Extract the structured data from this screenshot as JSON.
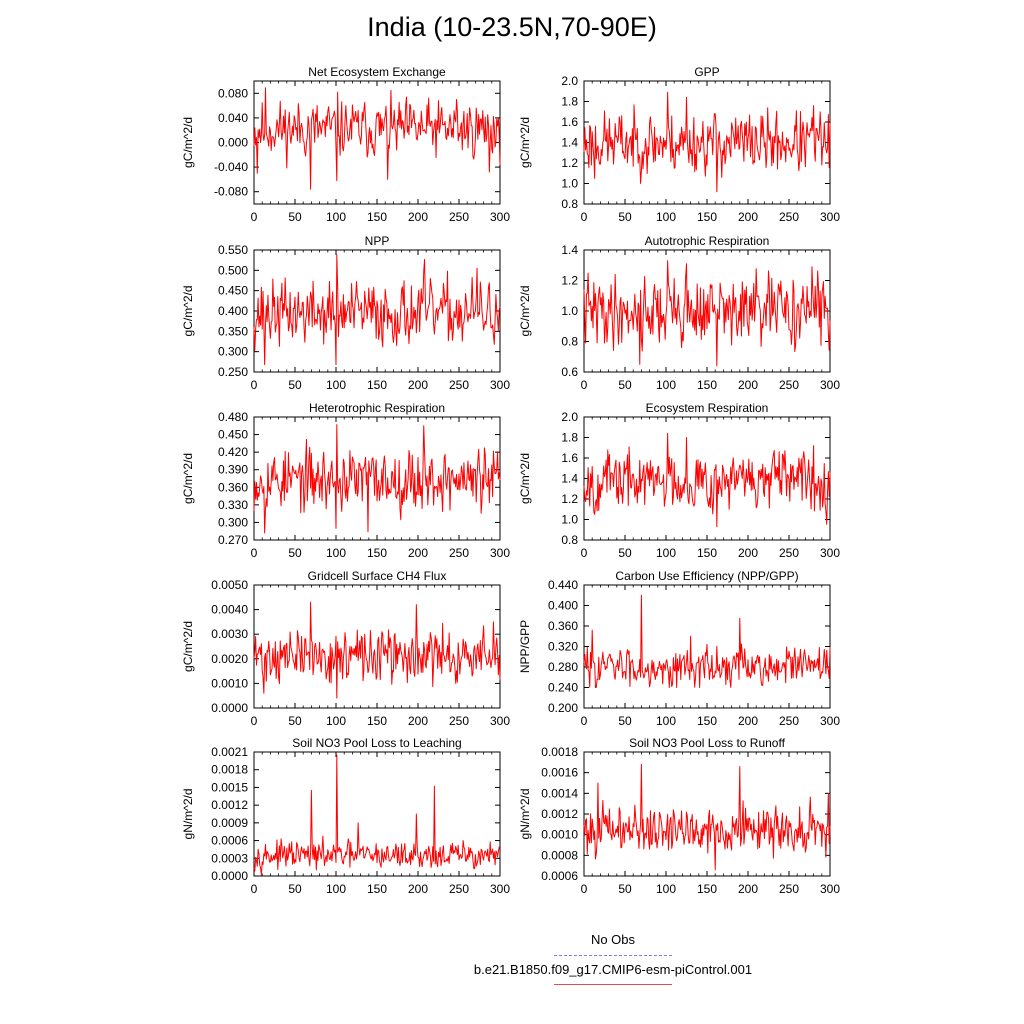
{
  "page": {
    "title": "India (10-23.5N,70-90E)"
  },
  "legend": {
    "no_obs_label": "No Obs",
    "case_label": "b.e21.B1850.f09_g17.CMIP6-esm-piControl.001",
    "no_obs_color": "#7f7fd8",
    "case_color": "#e05050"
  },
  "colors": {
    "series": "#ff0000",
    "axis": "#000000"
  },
  "chart_data": [
    {
      "type": "line",
      "title": "Net Ecosystem Exchange",
      "xlabel": "",
      "ylabel": "gC/m^2/d",
      "xlim": [
        0,
        300
      ],
      "ylim": [
        -0.1,
        0.1
      ],
      "xticks": [
        "0",
        "50",
        "100",
        "150",
        "200",
        "250",
        "300"
      ],
      "yticks": [
        "-0.080",
        "-0.040",
        "0.000",
        "0.040",
        "0.080"
      ],
      "ytick_values": [
        -0.08,
        -0.04,
        0.0,
        0.04,
        0.08
      ],
      "series": [
        {
          "base": 0.022,
          "amp": 0.026,
          "min": -0.076,
          "max": 0.089,
          "seed": 11,
          "peaks": [
            [
              4,
              -0.05
            ],
            [
              14,
              0.089
            ],
            [
              69,
              -0.076
            ],
            [
              101,
              -0.062
            ],
            [
              102,
              0.082
            ],
            [
              163,
              -0.06
            ],
            [
              247,
              0.07
            ],
            [
              287,
              -0.048
            ]
          ]
        }
      ]
    },
    {
      "type": "line",
      "title": "GPP",
      "xlabel": "",
      "ylabel": "gC/m^2/d",
      "xlim": [
        0,
        300
      ],
      "ylim": [
        0.8,
        2.0
      ],
      "xticks": [
        "0",
        "50",
        "100",
        "150",
        "200",
        "250",
        "300"
      ],
      "yticks": [
        "0.8",
        "1.0",
        "1.2",
        "1.4",
        "1.6",
        "1.8",
        "2.0"
      ],
      "ytick_values": [
        0.8,
        1.0,
        1.2,
        1.4,
        1.6,
        1.8,
        2.0
      ],
      "series": [
        {
          "base": 1.4,
          "amp": 0.17,
          "min": 0.92,
          "max": 1.89,
          "seed": 23,
          "peaks": [
            [
              102,
              1.89
            ],
            [
              125,
              1.84
            ],
            [
              162,
              0.92
            ],
            [
              13,
              1.05
            ],
            [
              280,
              1.76
            ]
          ]
        }
      ]
    },
    {
      "type": "line",
      "title": "NPP",
      "xlabel": "",
      "ylabel": "gC/m^2/d",
      "xlim": [
        0,
        300
      ],
      "ylim": [
        0.25,
        0.55
      ],
      "xticks": [
        "0",
        "50",
        "100",
        "150",
        "200",
        "250",
        "300"
      ],
      "yticks": [
        "0.250",
        "0.300",
        "0.350",
        "0.400",
        "0.450",
        "0.500",
        "0.550"
      ],
      "ytick_values": [
        0.25,
        0.3,
        0.35,
        0.4,
        0.45,
        0.5,
        0.55
      ],
      "series": [
        {
          "base": 0.395,
          "amp": 0.045,
          "min": 0.265,
          "max": 0.538,
          "seed": 37,
          "peaks": [
            [
              101,
              0.538
            ],
            [
              100,
              0.268
            ],
            [
              13,
              0.268
            ],
            [
              208,
              0.527
            ],
            [
              272,
              0.505
            ]
          ]
        }
      ]
    },
    {
      "type": "line",
      "title": "Autotrophic Respiration",
      "xlabel": "",
      "ylabel": "gC/m^2/d",
      "xlim": [
        0,
        300
      ],
      "ylim": [
        0.6,
        1.4
      ],
      "xticks": [
        "0",
        "50",
        "100",
        "150",
        "200",
        "250",
        "300"
      ],
      "yticks": [
        "0.6",
        "0.8",
        "1.0",
        "1.2",
        "1.4"
      ],
      "ytick_values": [
        0.6,
        0.8,
        1.0,
        1.2,
        1.4
      ],
      "series": [
        {
          "base": 1.0,
          "amp": 0.13,
          "min": 0.64,
          "max": 1.33,
          "seed": 41,
          "peaks": [
            [
              102,
              1.33
            ],
            [
              125,
              1.31
            ],
            [
              162,
              0.64
            ],
            [
              68,
              0.65
            ],
            [
              278,
              1.29
            ]
          ]
        }
      ]
    },
    {
      "type": "line",
      "title": "Heterotrophic Respiration",
      "xlabel": "",
      "ylabel": "gC/m^2/d",
      "xlim": [
        0,
        300
      ],
      "ylim": [
        0.27,
        0.48
      ],
      "xticks": [
        "0",
        "50",
        "100",
        "150",
        "200",
        "250",
        "300"
      ],
      "yticks": [
        "0.270",
        "0.300",
        "0.330",
        "0.360",
        "0.390",
        "0.420",
        "0.450",
        "0.480"
      ],
      "ytick_values": [
        0.27,
        0.3,
        0.33,
        0.36,
        0.39,
        0.42,
        0.45,
        0.48
      ],
      "series": [
        {
          "base": 0.373,
          "amp": 0.03,
          "min": 0.282,
          "max": 0.467,
          "seed": 53,
          "peaks": [
            [
              101,
              0.467
            ],
            [
              207,
              0.465
            ],
            [
              13,
              0.282
            ],
            [
              139,
              0.284
            ],
            [
              100,
              0.29
            ]
          ]
        }
      ]
    },
    {
      "type": "line",
      "title": "Ecosystem Respiration",
      "xlabel": "",
      "ylabel": "gC/m^2/d",
      "xlim": [
        0,
        300
      ],
      "ylim": [
        0.8,
        2.0
      ],
      "xticks": [
        "0",
        "50",
        "100",
        "150",
        "200",
        "250",
        "300"
      ],
      "yticks": [
        "0.8",
        "1.0",
        "1.2",
        "1.4",
        "1.6",
        "1.8",
        "2.0"
      ],
      "ytick_values": [
        0.8,
        1.0,
        1.2,
        1.4,
        1.6,
        1.8,
        2.0
      ],
      "series": [
        {
          "base": 1.38,
          "amp": 0.16,
          "min": 0.93,
          "max": 1.84,
          "seed": 67,
          "peaks": [
            [
              102,
              1.84
            ],
            [
              125,
              1.8
            ],
            [
              162,
              0.93
            ],
            [
              13,
              1.05
            ],
            [
              280,
              1.72
            ]
          ]
        }
      ]
    },
    {
      "type": "line",
      "title": "Gridcell Surface CH4 Flux",
      "xlabel": "",
      "ylabel": "gC/m^2/d",
      "xlim": [
        0,
        300
      ],
      "ylim": [
        0.0,
        0.005
      ],
      "xticks": [
        "0",
        "50",
        "100",
        "150",
        "200",
        "250",
        "300"
      ],
      "yticks": [
        "0.0000",
        "0.0010",
        "0.0020",
        "0.0030",
        "0.0040",
        "0.0050"
      ],
      "ytick_values": [
        0.0,
        0.001,
        0.002,
        0.003,
        0.004,
        0.005
      ],
      "series": [
        {
          "base": 0.0021,
          "amp": 0.0006,
          "min": 0.0004,
          "max": 0.0043,
          "seed": 71,
          "peaks": [
            [
              69,
              0.0043
            ],
            [
              101,
              0.0004
            ],
            [
              198,
              0.0042
            ],
            [
              12,
              0.0006
            ],
            [
              292,
              0.0035
            ]
          ]
        }
      ]
    },
    {
      "type": "line",
      "title": "Carbon Use Efficiency (NPP/GPP)",
      "xlabel": "",
      "ylabel": "NPP/GPP",
      "xlim": [
        0,
        300
      ],
      "ylim": [
        0.2,
        0.44
      ],
      "xticks": [
        "0",
        "50",
        "100",
        "150",
        "200",
        "250",
        "300"
      ],
      "yticks": [
        "0.200",
        "0.240",
        "0.280",
        "0.320",
        "0.360",
        "0.400",
        "0.440"
      ],
      "ytick_values": [
        0.2,
        0.24,
        0.28,
        0.32,
        0.36,
        0.4,
        0.44
      ],
      "series": [
        {
          "base": 0.28,
          "amp": 0.022,
          "min": 0.24,
          "max": 0.42,
          "seed": 83,
          "peaks": [
            [
              70,
              0.42
            ],
            [
              190,
              0.375
            ],
            [
              10,
              0.352
            ],
            [
              130,
              0.34
            ]
          ]
        }
      ]
    },
    {
      "type": "line",
      "title": "Soil NO3 Pool Loss to Leaching",
      "xlabel": "",
      "ylabel": "gN/m^2/d",
      "xlim": [
        0,
        300
      ],
      "ylim": [
        0.0,
        0.0021
      ],
      "xticks": [
        "0",
        "50",
        "100",
        "150",
        "200",
        "250",
        "300"
      ],
      "yticks": [
        "0.0000",
        "0.0003",
        "0.0006",
        "0.0009",
        "0.0012",
        "0.0015",
        "0.0018",
        "0.0021"
      ],
      "ytick_values": [
        0.0,
        0.0003,
        0.0006,
        0.0009,
        0.0012,
        0.0015,
        0.0018,
        0.0021
      ],
      "series": [
        {
          "base": 0.00035,
          "amp": 0.00013,
          "min": 2e-05,
          "max": 0.00205,
          "seed": 97,
          "peaks": [
            [
              101,
              0.00205
            ],
            [
              70,
              0.00145
            ],
            [
              220,
              0.00152
            ],
            [
              198,
              0.00105
            ],
            [
              127,
              0.0009
            ]
          ]
        }
      ]
    },
    {
      "type": "line",
      "title": "Soil NO3 Pool Loss to Runoff",
      "xlabel": "",
      "ylabel": "gN/m^2/d",
      "xlim": [
        0,
        300
      ],
      "ylim": [
        0.0006,
        0.0018
      ],
      "xticks": [
        "0",
        "50",
        "100",
        "150",
        "200",
        "250",
        "300"
      ],
      "yticks": [
        "0.0006",
        "0.0008",
        "0.0010",
        "0.0012",
        "0.0014",
        "0.0016",
        "0.0018"
      ],
      "ytick_values": [
        0.0006,
        0.0008,
        0.001,
        0.0012,
        0.0014,
        0.0016,
        0.0018
      ],
      "series": [
        {
          "base": 0.00105,
          "amp": 0.00013,
          "min": 0.00066,
          "max": 0.00168,
          "seed": 101,
          "peaks": [
            [
              70,
              0.00168
            ],
            [
              190,
              0.00166
            ],
            [
              160,
              0.00066
            ],
            [
              17,
              0.0015
            ],
            [
              298,
              0.0014
            ]
          ]
        }
      ]
    }
  ]
}
